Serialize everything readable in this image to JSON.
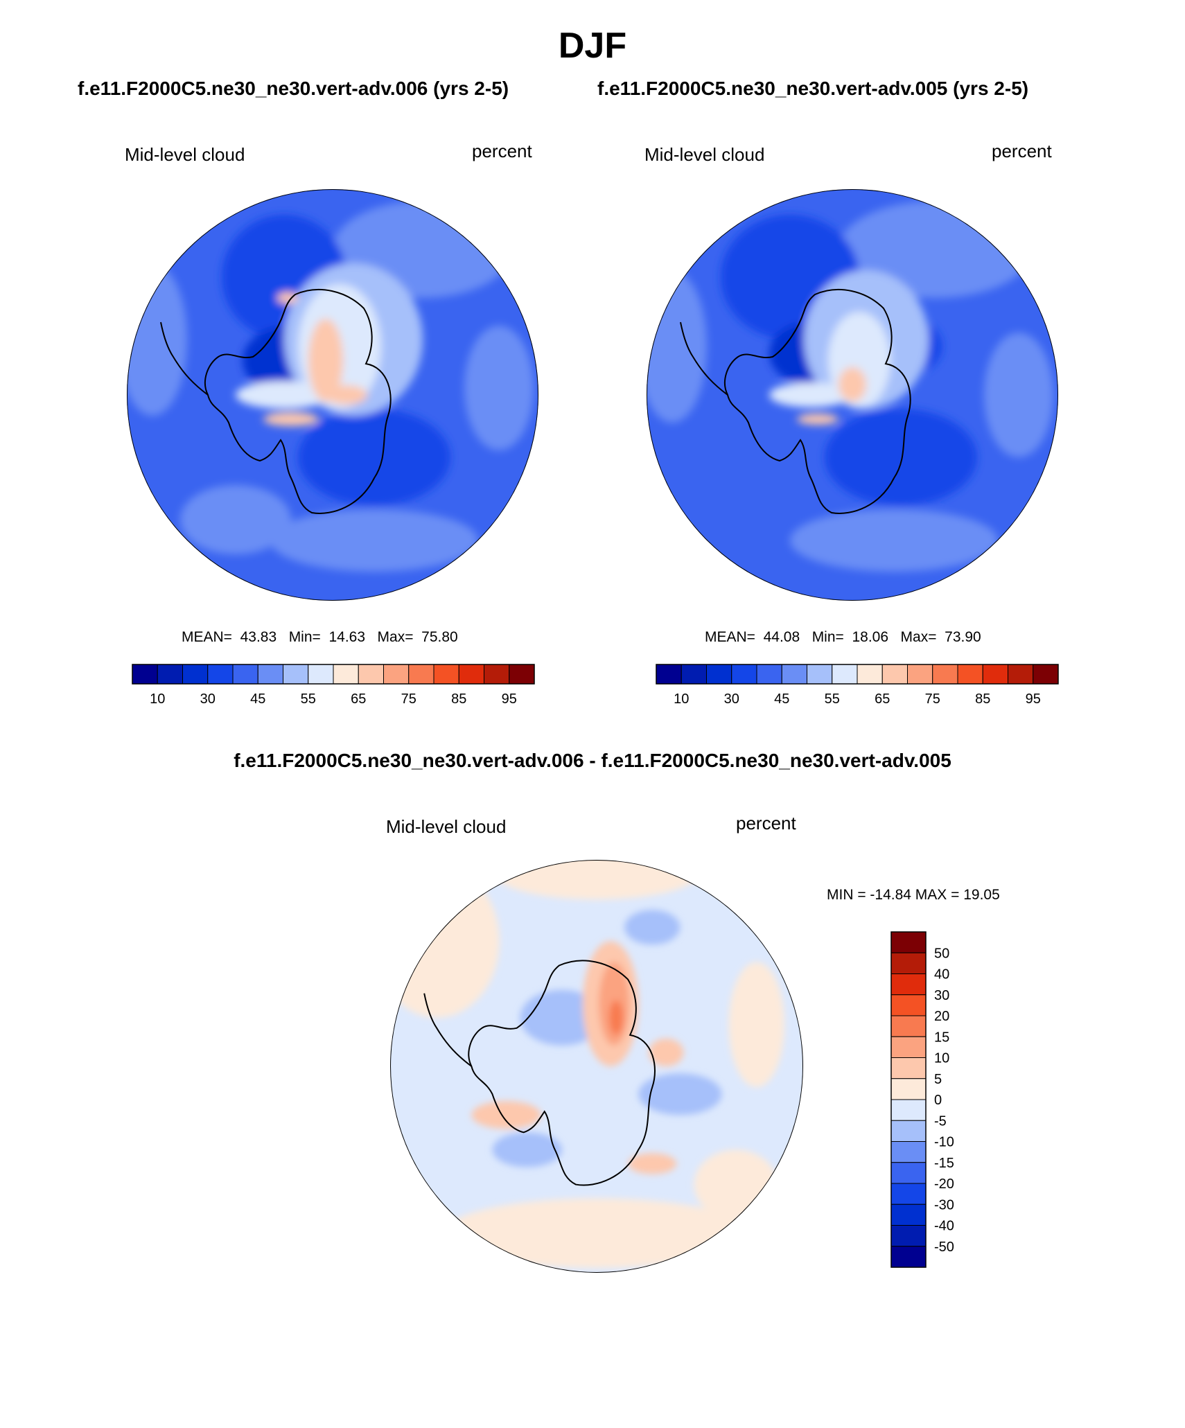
{
  "title": "DJF",
  "top_subtitles": {
    "left": "f.e11.F2000C5.ne30_ne30.vert-adv.006 (yrs 2-5)",
    "right": "f.e11.F2000C5.ne30_ne30.vert-adv.005 (yrs 2-5)"
  },
  "diff_subtitle": "f.e11.F2000C5.ne30_ne30.vert-adv.006 - f.e11.F2000C5.ne30_ne30.vert-adv.005",
  "panels": {
    "left": {
      "variable": "Mid-level cloud",
      "units": "percent",
      "stats": {
        "mean_label": "MEAN=",
        "mean": "43.83",
        "min_label": "Min=",
        "min": "14.63",
        "max_label": "Max=",
        "max": "75.80"
      }
    },
    "right": {
      "variable": "Mid-level cloud",
      "units": "percent",
      "stats": {
        "mean_label": "MEAN=",
        "mean": "44.08",
        "min_label": "Min=",
        "min": "18.06",
        "max_label": "Max=",
        "max": "73.90"
      }
    },
    "diff": {
      "variable": "Mid-level cloud",
      "units": "percent",
      "minmax": "MIN = -14.84 MAX =  19.05"
    }
  },
  "colorbars": {
    "abs": {
      "colors": [
        "#000090",
        "#001cb0",
        "#0030d0",
        "#1446e8",
        "#3a64f0",
        "#6a8ef5",
        "#a6c0fa",
        "#dde9fd",
        "#fdeada",
        "#fdc8ad",
        "#fba380",
        "#f87a50",
        "#f45224",
        "#e02c0c",
        "#b41c08",
        "#7c0004"
      ],
      "tick_labels": [
        "10",
        "30",
        "45",
        "55",
        "65",
        "75",
        "85",
        "95"
      ]
    },
    "diff": {
      "colors": [
        "#7c0004",
        "#b41c08",
        "#e02c0c",
        "#f45224",
        "#f87a50",
        "#fba380",
        "#fdc8ad",
        "#fdeada",
        "#dde9fd",
        "#a6c0fa",
        "#6a8ef5",
        "#3a64f0",
        "#1446e8",
        "#0030d0",
        "#001cb0",
        "#000090"
      ],
      "tick_labels": [
        "50",
        "40",
        "30",
        "20",
        "15",
        "10",
        "5",
        "0",
        "-5",
        "-10",
        "-15",
        "-20",
        "-30",
        "-40",
        "-50"
      ]
    }
  },
  "map_colors": {
    "abs_background": "#3a64f0",
    "abs_dark": "#1446e8",
    "abs_darker": "#0030d0",
    "abs_light": "#6a8ef5",
    "abs_lighter": "#a6c0fa",
    "abs_pale": "#dde9fd",
    "abs_warm": "#fdc8ad",
    "abs_warm2": "#fba380",
    "diff_background": "#dde9fd",
    "diff_pos": "#fdeada",
    "diff_pos2": "#fdc8ad",
    "diff_pos3": "#fba380",
    "diff_pos4": "#f87a50",
    "diff_neg": "#a6c0fa",
    "diff_neg2": "#6a8ef5",
    "coast": "#000000"
  }
}
